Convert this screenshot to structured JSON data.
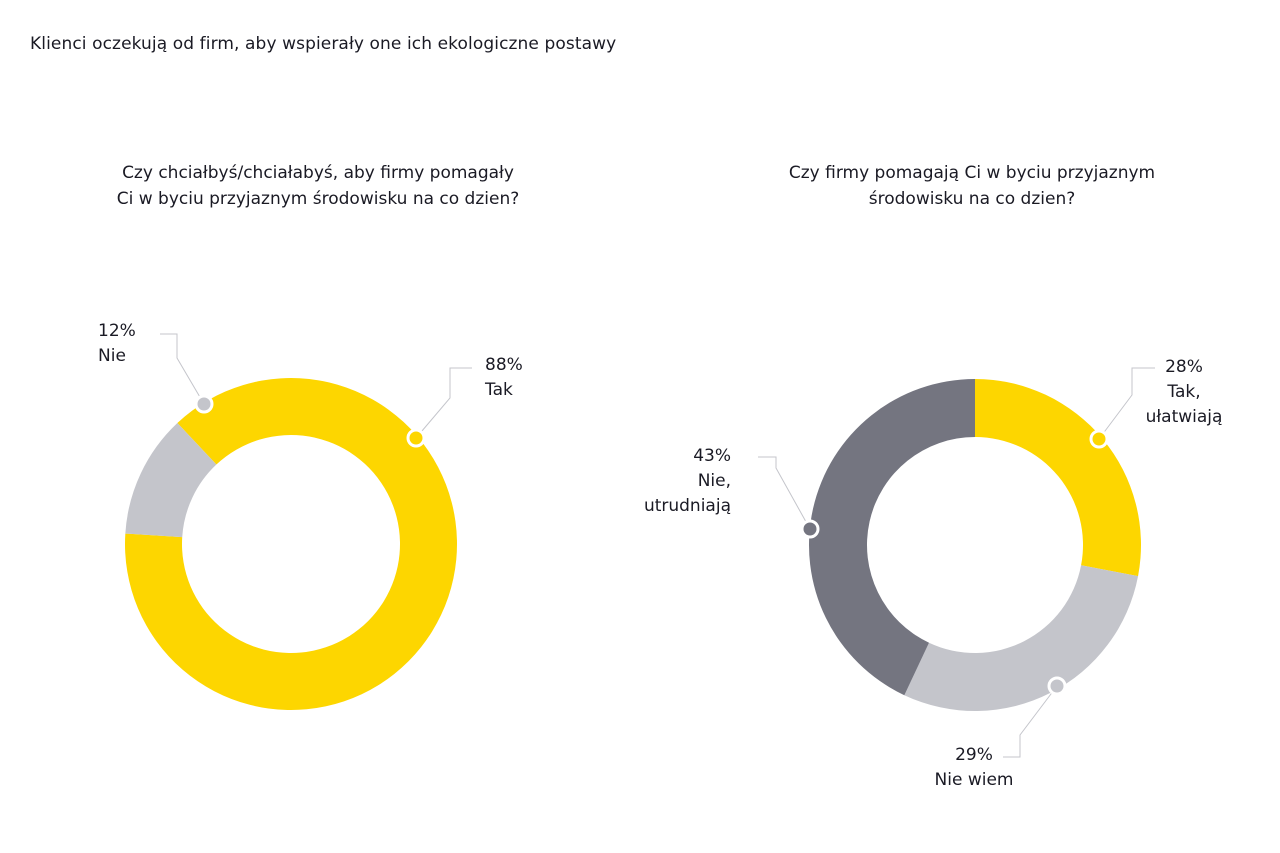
{
  "main_title": "Klienci oczekują od firm, aby wspierały one ich ekologiczne postawy",
  "colors": {
    "yellow": "#fdd600",
    "light_gray": "#c4c5cb",
    "dark_gray": "#747580",
    "leader_line": "#c4c5cb"
  },
  "chart_data": [
    {
      "type": "pie",
      "donut": true,
      "title_lines": [
        "Czy chciałbyś/chciałabyś, aby firmy pomagały",
        "Ci w byciu przyjaznym środowisku na co dzien?"
      ],
      "slices": [
        {
          "label_lines": [
            "Tak"
          ],
          "value": 88,
          "value_label": "88%",
          "color": "#fdd600"
        },
        {
          "label_lines": [
            "Nie"
          ],
          "value": 12,
          "value_label": "12%",
          "color": "#c4c5cb"
        }
      ]
    },
    {
      "type": "pie",
      "donut": true,
      "title_lines": [
        "Czy firmy pomagają Ci w byciu przyjaznym",
        "środowisku na co dzien?"
      ],
      "slices": [
        {
          "label_lines": [
            "Tak,",
            "ułatwiają"
          ],
          "value": 28,
          "value_label": "28%",
          "color": "#fdd600"
        },
        {
          "label_lines": [
            "Nie wiem"
          ],
          "value": 29,
          "value_label": "29%",
          "color": "#c4c5cb"
        },
        {
          "label_lines": [
            "Nie,",
            "utrudniają"
          ],
          "value": 43,
          "value_label": "43%",
          "color": "#747580"
        }
      ]
    }
  ]
}
